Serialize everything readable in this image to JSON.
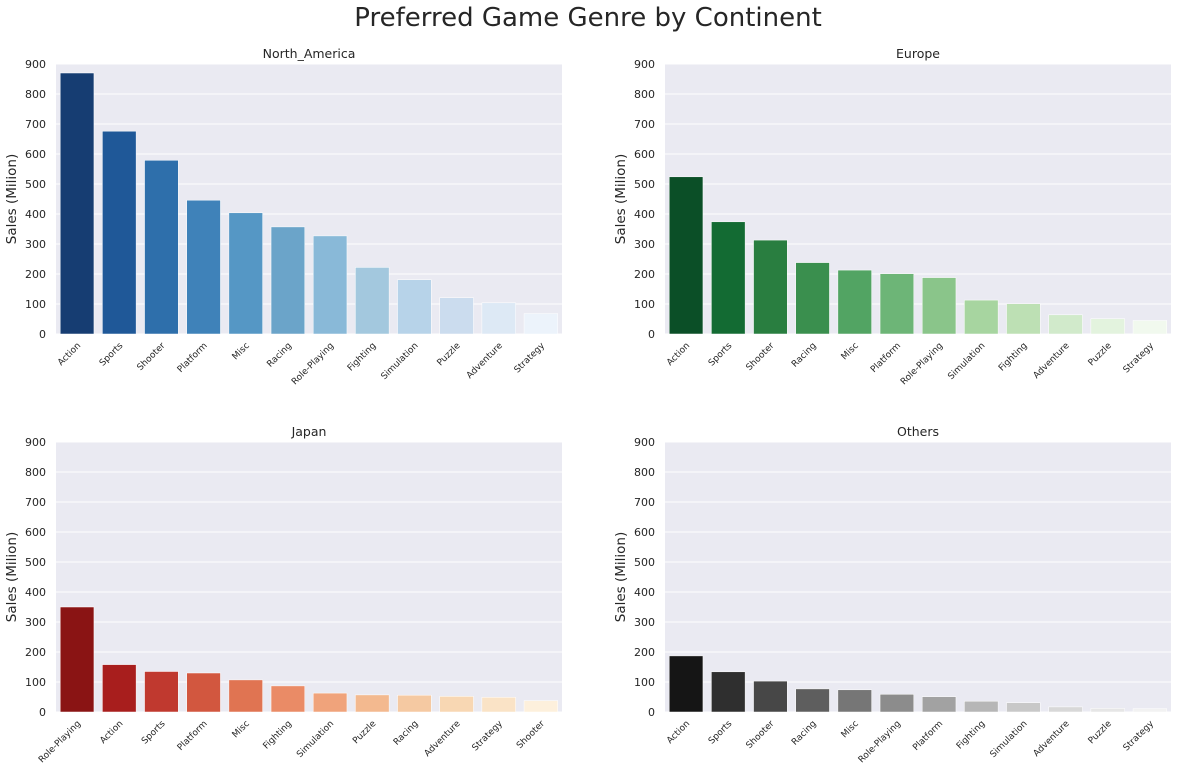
{
  "figure": {
    "suptitle": "Preferred Game Genre by Continent"
  },
  "chart_data": [
    {
      "type": "bar",
      "title": "North_America",
      "ylabel": "Sales (Milion)",
      "xlabel": "",
      "ylim": [
        0,
        900
      ],
      "yticks": [
        0,
        100,
        200,
        300,
        400,
        500,
        600,
        700,
        800,
        900
      ],
      "grid": true,
      "categories": [
        "Action",
        "Sports",
        "Shooter",
        "Platform",
        "Misc",
        "Racing",
        "Role-Playing",
        "Fighting",
        "Simulation",
        "Puzzle",
        "Adventure",
        "Strategy"
      ],
      "values": [
        870,
        676,
        579,
        446,
        404,
        357,
        327,
        222,
        181,
        121,
        104,
        68
      ],
      "colors": [
        "#163d72",
        "#1f5898",
        "#2e6fab",
        "#3f82b9",
        "#5597c5",
        "#6ba4c9",
        "#89b9d8",
        "#a3c8de",
        "#b7d3e9",
        "#cbdcee",
        "#dde9f5",
        "#ecf3fb"
      ]
    },
    {
      "type": "bar",
      "title": "Europe",
      "ylabel": "Sales (Milion)",
      "xlabel": "",
      "ylim": [
        0,
        900
      ],
      "yticks": [
        0,
        100,
        200,
        300,
        400,
        500,
        600,
        700,
        800,
        900
      ],
      "grid": true,
      "categories": [
        "Action",
        "Sports",
        "Shooter",
        "Racing",
        "Misc",
        "Platform",
        "Role-Playing",
        "Simulation",
        "Fighting",
        "Adventure",
        "Puzzle",
        "Strategy"
      ],
      "values": [
        524,
        374,
        313,
        238,
        213,
        201,
        188,
        113,
        101,
        64,
        51,
        45
      ],
      "colors": [
        "#0b4f27",
        "#136b33",
        "#297e40",
        "#3a8f4e",
        "#52a463",
        "#6db577",
        "#8ac58a",
        "#a7d5a0",
        "#bde0b4",
        "#d1eacb",
        "#e3f3de",
        "#f1f9ee"
      ]
    },
    {
      "type": "bar",
      "title": "Japan",
      "ylabel": "Sales (Milion)",
      "xlabel": "",
      "ylim": [
        0,
        900
      ],
      "yticks": [
        0,
        100,
        200,
        300,
        400,
        500,
        600,
        700,
        800,
        900
      ],
      "grid": true,
      "categories": [
        "Role-Playing",
        "Action",
        "Sports",
        "Platform",
        "Misc",
        "Fighting",
        "Simulation",
        "Puzzle",
        "Racing",
        "Adventure",
        "Strategy",
        "Shooter"
      ],
      "values": [
        350,
        158,
        135,
        130,
        107,
        87,
        63,
        57,
        56,
        52,
        49,
        38
      ],
      "colors": [
        "#8a1414",
        "#a81e1d",
        "#c0392f",
        "#d2573f",
        "#e07452",
        "#ea8b66",
        "#f0a37b",
        "#f3b98f",
        "#f5c9a2",
        "#f8d7b3",
        "#fae3c6",
        "#fdf0dc"
      ]
    },
    {
      "type": "bar",
      "title": "Others",
      "ylabel": "Sales (Milion)",
      "xlabel": "",
      "ylim": [
        0,
        900
      ],
      "yticks": [
        0,
        100,
        200,
        300,
        400,
        500,
        600,
        700,
        800,
        900
      ],
      "grid": true,
      "categories": [
        "Action",
        "Sports",
        "Shooter",
        "Racing",
        "Misc",
        "Role-Playing",
        "Platform",
        "Fighting",
        "Simulation",
        "Adventure",
        "Puzzle",
        "Strategy"
      ],
      "values": [
        187,
        134,
        103,
        77,
        74,
        59,
        51,
        36,
        31,
        17,
        12,
        11
      ],
      "colors": [
        "#151515",
        "#2f2f2f",
        "#474747",
        "#5e5e5e",
        "#767676",
        "#8c8c8c",
        "#a2a2a2",
        "#b6b6b6",
        "#c8c8c8",
        "#d8d8d8",
        "#e6e6e6",
        "#f2f2f2"
      ]
    }
  ],
  "style": {
    "axes_bg": "#eaeaf2",
    "grid_color": "#ffffff",
    "text_color": "#262626",
    "tick_color": "#262626"
  }
}
